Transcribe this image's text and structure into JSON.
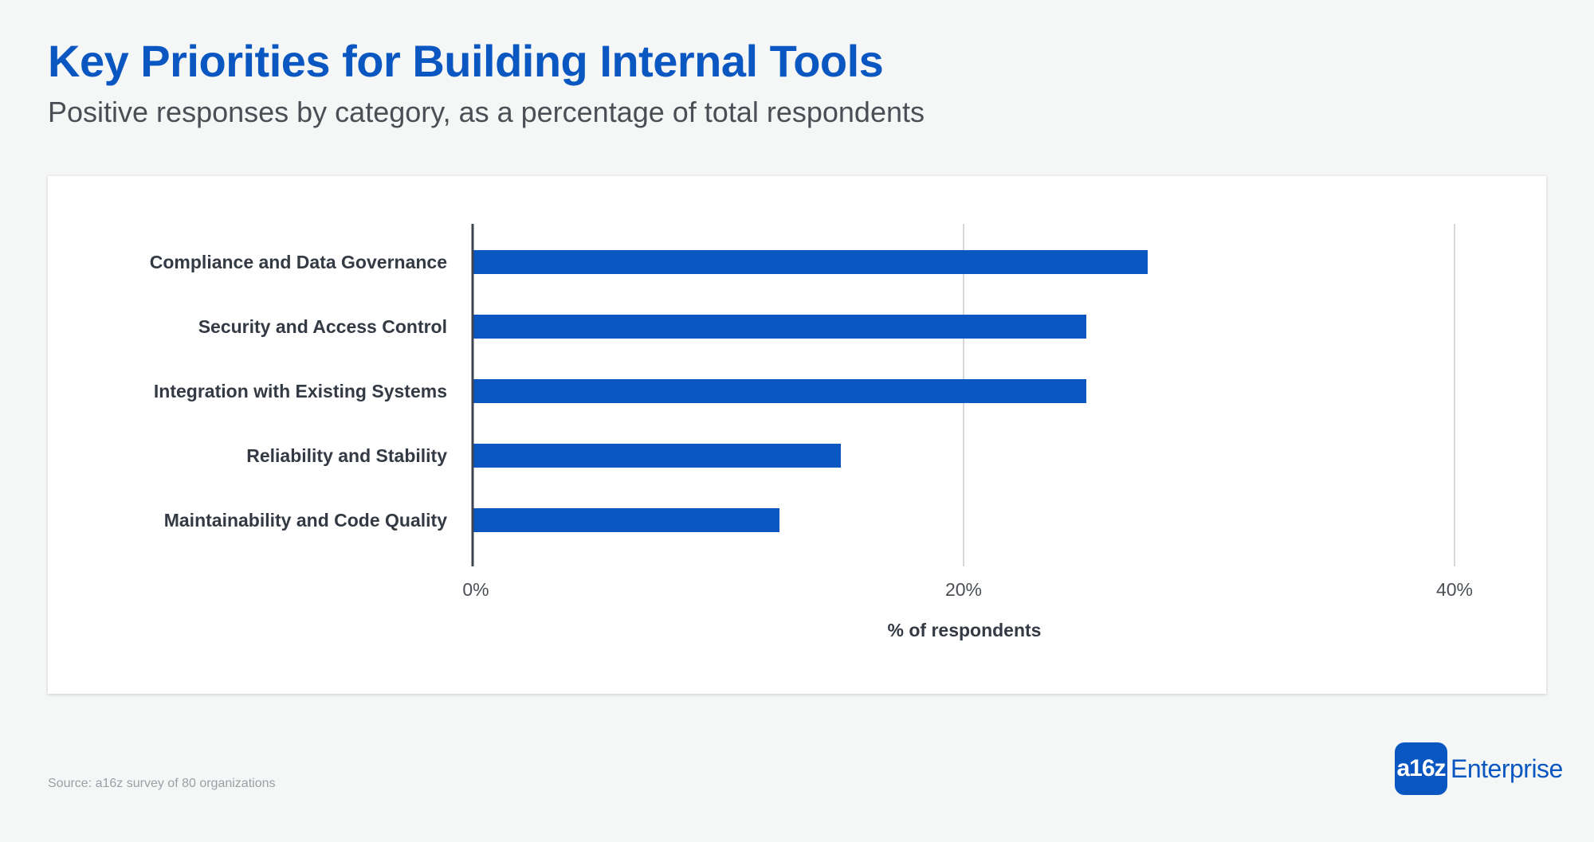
{
  "header": {
    "title": "Key Priorities for Building Internal Tools",
    "subtitle": "Positive responses by category, as a percentage of total respondents"
  },
  "footer": {
    "source": "Source: a16z survey of 80 organizations",
    "brand_mark": "a16z",
    "brand_text": "Enterprise"
  },
  "colors": {
    "bar": "#0a57c2",
    "title": "#0a57c2",
    "axis": "#3d4450",
    "grid": "#c8cbcf",
    "label": "#333a44",
    "tick": "#4a4f55"
  },
  "chart_data": {
    "type": "bar",
    "orientation": "horizontal",
    "categories": [
      "Compliance and Data Governance",
      "Security and Access Control",
      "Integration with Existing Systems",
      "Reliability and Stability",
      "Maintainability and Code Quality"
    ],
    "values": [
      27.5,
      25,
      25,
      15,
      12.5
    ],
    "unit": "%",
    "xlabel": "% of respondents",
    "ylabel": "",
    "xlim": [
      0,
      40
    ],
    "xticks": [
      0,
      20,
      40
    ],
    "xtick_labels": [
      "0%",
      "20%",
      "40%"
    ],
    "grid": true,
    "legend": "none"
  }
}
